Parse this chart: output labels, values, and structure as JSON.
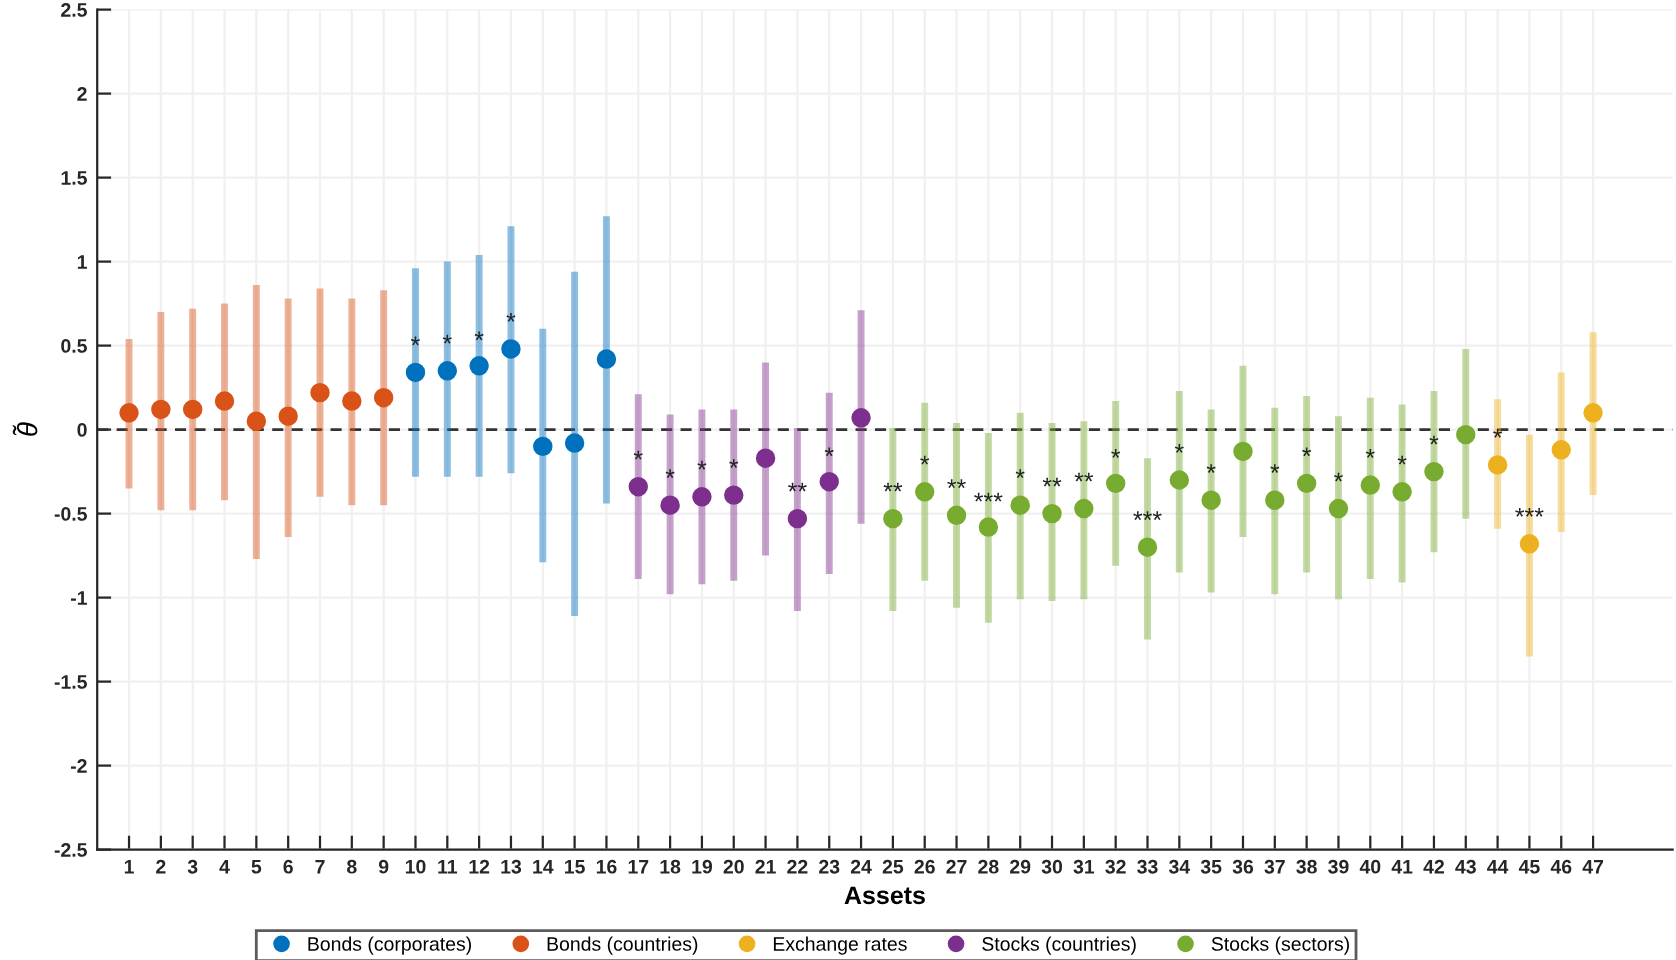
{
  "chart_data": {
    "type": "scatter",
    "xlabel": "Assets",
    "ylabel": "θ̃",
    "xlim": [
      0,
      49.5
    ],
    "ylim": [
      -2.5,
      2.5
    ],
    "xticks": [
      1,
      2,
      3,
      4,
      5,
      6,
      7,
      8,
      9,
      10,
      11,
      12,
      13,
      14,
      15,
      16,
      17,
      18,
      19,
      20,
      21,
      22,
      23,
      24,
      25,
      26,
      27,
      28,
      29,
      30,
      31,
      32,
      33,
      34,
      35,
      36,
      37,
      38,
      39,
      40,
      41,
      42,
      43,
      44,
      45,
      46,
      47
    ],
    "yticks": [
      -2.5,
      -2,
      -1.5,
      -1,
      -0.5,
      0,
      0.5,
      1,
      1.5,
      2,
      2.5
    ],
    "grid": true,
    "legend": "bottom",
    "marker": "circle",
    "ref_lines": [
      {
        "axis": "y",
        "value": 0,
        "color": "#333333",
        "line_style": "dashed"
      }
    ],
    "series": [
      {
        "name": "Bonds (corporates)",
        "color": "#0072bd",
        "x": [
          10,
          11,
          12,
          13,
          14,
          15,
          16
        ],
        "values": [
          0.34,
          0.35,
          0.38,
          0.48,
          -0.1,
          -0.08,
          0.42
        ],
        "errors": [
          [
            -0.28,
            0.96
          ],
          [
            -0.28,
            1.0
          ],
          [
            -0.28,
            1.04
          ],
          [
            -0.26,
            1.21
          ],
          [
            -0.79,
            0.6
          ],
          [
            -1.11,
            0.94
          ],
          [
            -0.44,
            1.27
          ]
        ]
      },
      {
        "name": "Bonds (countries)",
        "color": "#d95319",
        "x": [
          1,
          2,
          3,
          4,
          5,
          6,
          7,
          8,
          9
        ],
        "values": [
          0.1,
          0.12,
          0.12,
          0.17,
          0.05,
          0.08,
          0.22,
          0.17,
          0.19
        ],
        "errors": [
          [
            -0.35,
            0.54
          ],
          [
            -0.48,
            0.7
          ],
          [
            -0.48,
            0.72
          ],
          [
            -0.42,
            0.75
          ],
          [
            -0.77,
            0.86
          ],
          [
            -0.64,
            0.78
          ],
          [
            -0.4,
            0.84
          ],
          [
            -0.45,
            0.78
          ],
          [
            -0.45,
            0.83
          ]
        ]
      },
      {
        "name": "Exchange rates",
        "color": "#edb120",
        "x": [
          44,
          45,
          46,
          47
        ],
        "values": [
          -0.21,
          -0.68,
          -0.12,
          0.1
        ],
        "errors": [
          [
            -0.59,
            0.18
          ],
          [
            -1.35,
            -0.03
          ],
          [
            -0.61,
            0.34
          ],
          [
            -0.39,
            0.58
          ]
        ]
      },
      {
        "name": "Stocks (countries)",
        "color": "#7e2f8e",
        "x": [
          17,
          18,
          19,
          20,
          21,
          22,
          23,
          24
        ],
        "values": [
          -0.34,
          -0.45,
          -0.4,
          -0.39,
          -0.17,
          -0.53,
          -0.31,
          0.07
        ],
        "errors": [
          [
            -0.89,
            0.21
          ],
          [
            -0.98,
            0.09
          ],
          [
            -0.92,
            0.12
          ],
          [
            -0.9,
            0.12
          ],
          [
            -0.75,
            0.4
          ],
          [
            -1.08,
            0.01
          ],
          [
            -0.86,
            0.22
          ],
          [
            -0.56,
            0.71
          ]
        ]
      },
      {
        "name": "Stocks (sectors)",
        "color": "#77ac30",
        "x": [
          25,
          26,
          27,
          28,
          29,
          30,
          31,
          32,
          33,
          34,
          35,
          36,
          37,
          38,
          39,
          40,
          41,
          42,
          43
        ],
        "values": [
          -0.53,
          -0.37,
          -0.51,
          -0.58,
          -0.45,
          -0.5,
          -0.47,
          -0.32,
          -0.7,
          -0.3,
          -0.42,
          -0.13,
          -0.42,
          -0.32,
          -0.47,
          -0.33,
          -0.37,
          -0.25,
          -0.03
        ],
        "errors": [
          [
            -1.08,
            0.01
          ],
          [
            -0.9,
            0.16
          ],
          [
            -1.06,
            0.04
          ],
          [
            -1.15,
            -0.02
          ],
          [
            -1.01,
            0.1
          ],
          [
            -1.02,
            0.04
          ],
          [
            -1.01,
            0.05
          ],
          [
            -0.81,
            0.17
          ],
          [
            -1.25,
            -0.17
          ],
          [
            -0.85,
            0.23
          ],
          [
            -0.97,
            0.12
          ],
          [
            -0.64,
            0.38
          ],
          [
            -0.98,
            0.13
          ],
          [
            -0.85,
            0.2
          ],
          [
            -1.01,
            0.08
          ],
          [
            -0.89,
            0.19
          ],
          [
            -0.91,
            0.15
          ],
          [
            -0.73,
            0.23
          ],
          [
            -0.53,
            0.48
          ]
        ]
      }
    ],
    "annotations": [
      {
        "text": "*",
        "x": 10,
        "y": 0.49
      },
      {
        "text": "*",
        "x": 11,
        "y": 0.5
      },
      {
        "text": "*",
        "x": 12,
        "y": 0.52
      },
      {
        "text": "*",
        "x": 13,
        "y": 0.63
      },
      {
        "text": "*",
        "x": 17,
        "y": -0.19
      },
      {
        "text": "*",
        "x": 18,
        "y": -0.3
      },
      {
        "text": "*",
        "x": 19,
        "y": -0.25
      },
      {
        "text": "*",
        "x": 20,
        "y": -0.24
      },
      {
        "text": "**",
        "x": 22,
        "y": -0.38
      },
      {
        "text": "*",
        "x": 23,
        "y": -0.17
      },
      {
        "text": "**",
        "x": 25,
        "y": -0.38
      },
      {
        "text": "*",
        "x": 26,
        "y": -0.22
      },
      {
        "text": "**",
        "x": 27,
        "y": -0.36
      },
      {
        "text": "***",
        "x": 28,
        "y": -0.44
      },
      {
        "text": "*",
        "x": 29,
        "y": -0.3
      },
      {
        "text": "**",
        "x": 30,
        "y": -0.35
      },
      {
        "text": "**",
        "x": 31,
        "y": -0.32
      },
      {
        "text": "*",
        "x": 32,
        "y": -0.18
      },
      {
        "text": "***",
        "x": 33,
        "y": -0.55
      },
      {
        "text": "*",
        "x": 34,
        "y": -0.15
      },
      {
        "text": "*",
        "x": 35,
        "y": -0.27
      },
      {
        "text": "*",
        "x": 37,
        "y": -0.27
      },
      {
        "text": "*",
        "x": 38,
        "y": -0.17
      },
      {
        "text": "*",
        "x": 39,
        "y": -0.32
      },
      {
        "text": "*",
        "x": 40,
        "y": -0.18
      },
      {
        "text": "*",
        "x": 41,
        "y": -0.22
      },
      {
        "text": "*",
        "x": 42,
        "y": -0.1
      },
      {
        "text": "*",
        "x": 44,
        "y": -0.06
      },
      {
        "text": "***",
        "x": 45,
        "y": -0.53
      }
    ]
  }
}
